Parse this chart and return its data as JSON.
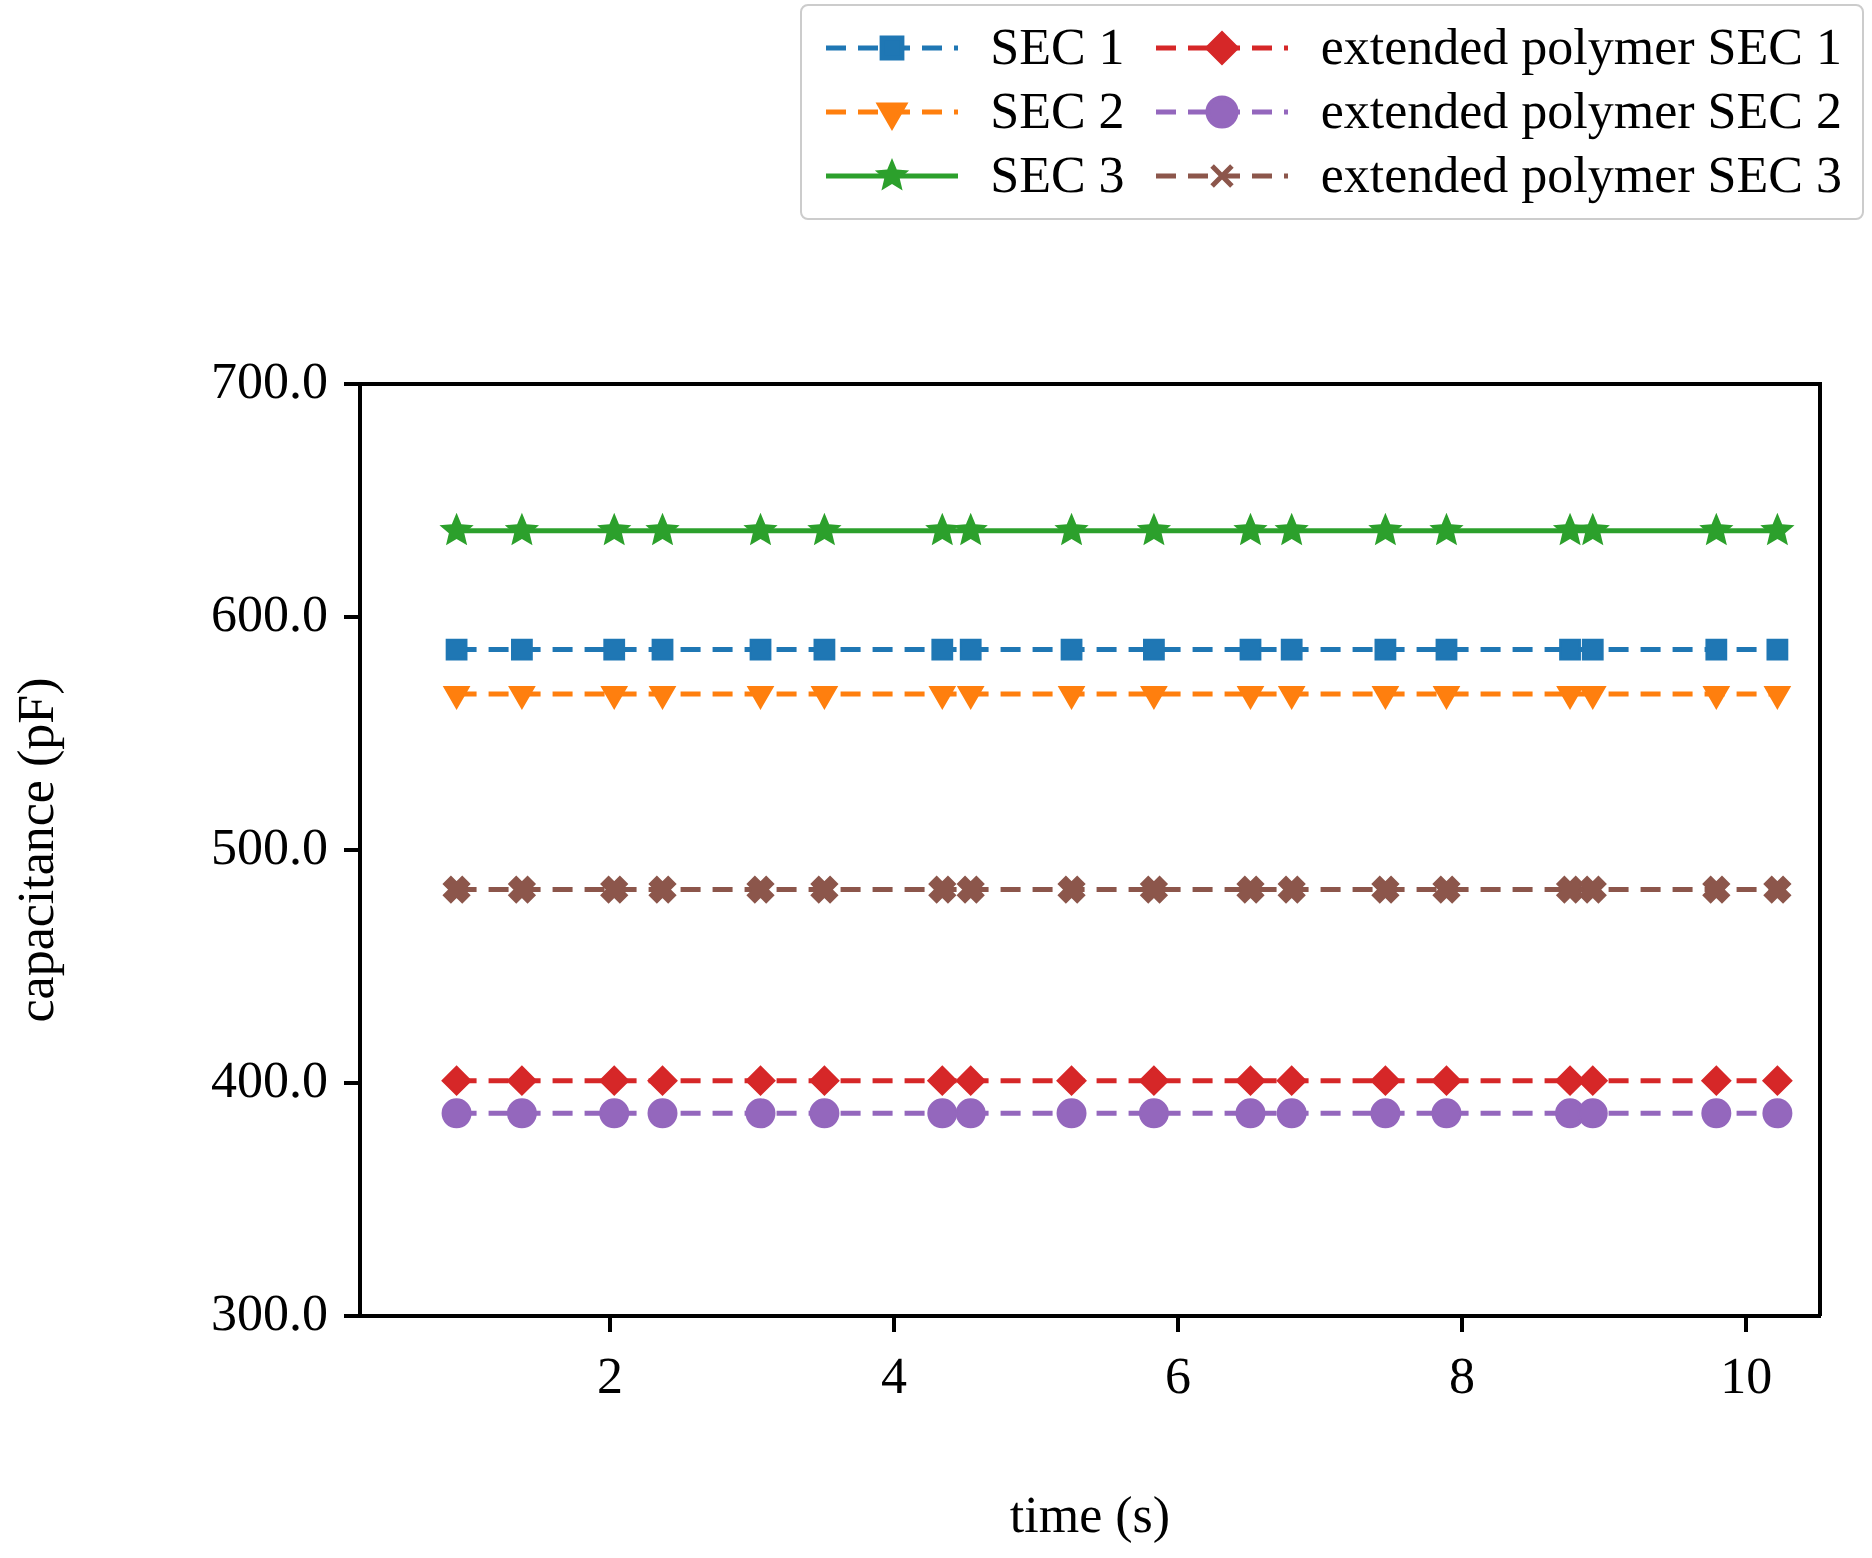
{
  "chart_data": {
    "type": "line",
    "xlabel": "time (s)",
    "ylabel": "capacitance (pF)",
    "x": [
      0.92,
      1.38,
      2.03,
      2.37,
      3.06,
      3.51,
      4.34,
      4.54,
      5.25,
      5.83,
      6.51,
      6.8,
      7.46,
      7.89,
      8.76,
      8.92,
      9.79,
      10.22
    ],
    "xlim": [
      0.24,
      10.52
    ],
    "xticks": [
      2,
      4,
      6,
      8,
      10
    ],
    "ylim": [
      300,
      700
    ],
    "yticks": [
      {
        "value": 300,
        "label": "300.0"
      },
      {
        "value": 400,
        "label": "400.0"
      },
      {
        "value": 500,
        "label": "500.0"
      },
      {
        "value": 600,
        "label": "600.0"
      },
      {
        "value": 700,
        "label": "700.0"
      }
    ],
    "grid": false,
    "legend": "top right",
    "series": [
      {
        "name": "SEC 1",
        "color": "#1f77b4",
        "marker": "square",
        "line_style": "dashed",
        "values": [
          586,
          586,
          586,
          586,
          586,
          586,
          586,
          586,
          586,
          586,
          586,
          586,
          586,
          586,
          586,
          586,
          586,
          586
        ]
      },
      {
        "name": "SEC 2",
        "color": "#ff7f0e",
        "marker": "triangle",
        "line_style": "dashed",
        "values": [
          567,
          567,
          567,
          567,
          567,
          567,
          567,
          567,
          567,
          567,
          567,
          567,
          567,
          567,
          567,
          567,
          567,
          567
        ]
      },
      {
        "name": "SEC 3",
        "color": "#2ca02c",
        "marker": "star",
        "line_style": "solid",
        "values": [
          637,
          637,
          637,
          637,
          637,
          637,
          637,
          637,
          637,
          637,
          637,
          637,
          637,
          637,
          637,
          637,
          637,
          637
        ]
      },
      {
        "name": "extended polymer SEC 1",
        "color": "#d62728",
        "marker": "diamond",
        "line_style": "dashed",
        "values": [
          401,
          401,
          401,
          401,
          401,
          401,
          401,
          401,
          401,
          401,
          401,
          401,
          401,
          401,
          401,
          401,
          401,
          401
        ]
      },
      {
        "name": "extended polymer SEC 2",
        "color": "#9467bd",
        "marker": "circle",
        "line_style": "dashed",
        "values": [
          387,
          387,
          387,
          387,
          387,
          387,
          387,
          387,
          387,
          387,
          387,
          387,
          387,
          387,
          387,
          387,
          387,
          387
        ]
      },
      {
        "name": "extended polymer SEC 3",
        "color": "#8c564b",
        "marker": "cross",
        "line_style": "dashed",
        "values": [
          483,
          483,
          483,
          483,
          483,
          483,
          483,
          483,
          483,
          483,
          483,
          483,
          483,
          483,
          483,
          483,
          483,
          483
        ]
      }
    ]
  }
}
